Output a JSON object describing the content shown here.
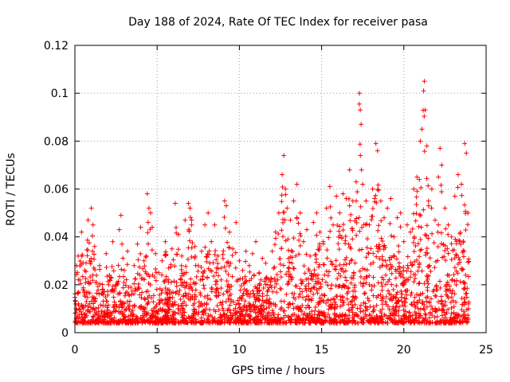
{
  "chart_data": {
    "type": "scatter",
    "title": "Day 188 of 2024, Rate Of TEC Index for receiver pasa",
    "xlabel": "GPS time / hours",
    "ylabel": "ROTI / TECUs",
    "xlim": [
      0,
      25
    ],
    "ylim": [
      0,
      0.12
    ],
    "xticks": [
      0,
      5,
      10,
      15,
      20,
      25
    ],
    "yticks": [
      0,
      0.02,
      0.04,
      0.06,
      0.08,
      0.1,
      0.12
    ],
    "xtick_labels": [
      "0",
      "5",
      "10",
      "15",
      "20",
      "25"
    ],
    "ytick_labels": [
      "0",
      "0.02",
      "0.04",
      "0.06",
      "0.08",
      "0.1",
      "0.12"
    ],
    "grid": true,
    "marker": "+",
    "color": "#ff0000",
    "series": [
      {
        "name": "ROTI",
        "points": [
          [
            0.05,
            0.012
          ],
          [
            0.1,
            0.028
          ],
          [
            0.2,
            0.032
          ],
          [
            0.3,
            0.022
          ],
          [
            0.4,
            0.042
          ],
          [
            0.5,
            0.018
          ],
          [
            0.6,
            0.026
          ],
          [
            0.7,
            0.013
          ],
          [
            0.8,
            0.047
          ],
          [
            0.9,
            0.03
          ],
          [
            1.0,
            0.052
          ],
          [
            1.1,
            0.045
          ],
          [
            1.2,
            0.036
          ],
          [
            1.3,
            0.021
          ],
          [
            1.5,
            0.028
          ],
          [
            1.7,
            0.017
          ],
          [
            1.9,
            0.033
          ],
          [
            2.1,
            0.024
          ],
          [
            2.3,
            0.038
          ],
          [
            2.5,
            0.02
          ],
          [
            2.7,
            0.043
          ],
          [
            2.8,
            0.049
          ],
          [
            3.0,
            0.026
          ],
          [
            3.2,
            0.034
          ],
          [
            3.4,
            0.019
          ],
          [
            3.6,
            0.028
          ],
          [
            3.8,
            0.037
          ],
          [
            4.0,
            0.044
          ],
          [
            4.2,
            0.03
          ],
          [
            4.4,
            0.058
          ],
          [
            4.5,
            0.052
          ],
          [
            4.6,
            0.05
          ],
          [
            4.7,
            0.044
          ],
          [
            4.9,
            0.033
          ],
          [
            5.1,
            0.025
          ],
          [
            5.3,
            0.03
          ],
          [
            5.5,
            0.038
          ],
          [
            5.7,
            0.027
          ],
          [
            5.9,
            0.035
          ],
          [
            6.1,
            0.054
          ],
          [
            6.3,
            0.041
          ],
          [
            6.5,
            0.032
          ],
          [
            6.7,
            0.047
          ],
          [
            6.9,
            0.054
          ],
          [
            7.0,
            0.052
          ],
          [
            7.1,
            0.047
          ],
          [
            7.3,
            0.036
          ],
          [
            7.5,
            0.028
          ],
          [
            7.7,
            0.034
          ],
          [
            7.9,
            0.045
          ],
          [
            8.1,
            0.05
          ],
          [
            8.3,
            0.038
          ],
          [
            8.5,
            0.045
          ],
          [
            8.7,
            0.032
          ],
          [
            8.9,
            0.027
          ],
          [
            9.1,
            0.055
          ],
          [
            9.2,
            0.053
          ],
          [
            9.4,
            0.042
          ],
          [
            9.6,
            0.035
          ],
          [
            9.8,
            0.046
          ],
          [
            10.0,
            0.03
          ],
          [
            10.2,
            0.026
          ],
          [
            10.4,
            0.034
          ],
          [
            10.6,
            0.028
          ],
          [
            10.8,
            0.033
          ],
          [
            11.0,
            0.038
          ],
          [
            11.2,
            0.025
          ],
          [
            11.4,
            0.031
          ],
          [
            11.6,
            0.029
          ],
          [
            11.8,
            0.022
          ],
          [
            12.0,
            0.034
          ],
          [
            12.2,
            0.042
          ],
          [
            12.4,
            0.05
          ],
          [
            12.6,
            0.066
          ],
          [
            12.7,
            0.074
          ],
          [
            12.8,
            0.06
          ],
          [
            12.9,
            0.052
          ],
          [
            13.1,
            0.047
          ],
          [
            13.3,
            0.055
          ],
          [
            13.5,
            0.062
          ],
          [
            13.7,
            0.05
          ],
          [
            13.9,
            0.038
          ],
          [
            14.1,
            0.043
          ],
          [
            14.3,
            0.032
          ],
          [
            14.5,
            0.046
          ],
          [
            14.7,
            0.05
          ],
          [
            14.9,
            0.042
          ],
          [
            15.1,
            0.038
          ],
          [
            15.3,
            0.052
          ],
          [
            15.5,
            0.061
          ],
          [
            15.7,
            0.045
          ],
          [
            15.9,
            0.057
          ],
          [
            16.1,
            0.05
          ],
          [
            16.3,
            0.058
          ],
          [
            16.5,
            0.056
          ],
          [
            16.7,
            0.068
          ],
          [
            16.9,
            0.055
          ],
          [
            17.1,
            0.063
          ],
          [
            17.3,
            0.1
          ],
          [
            17.35,
            0.093
          ],
          [
            17.4,
            0.087
          ],
          [
            17.5,
            0.062
          ],
          [
            17.7,
            0.055
          ],
          [
            17.9,
            0.045
          ],
          [
            18.1,
            0.06
          ],
          [
            18.3,
            0.079
          ],
          [
            18.4,
            0.076
          ],
          [
            18.6,
            0.055
          ],
          [
            18.8,
            0.048
          ],
          [
            19.0,
            0.052
          ],
          [
            19.2,
            0.056
          ],
          [
            19.4,
            0.04
          ],
          [
            19.6,
            0.048
          ],
          [
            19.8,
            0.05
          ],
          [
            20.0,
            0.038
          ],
          [
            20.2,
            0.045
          ],
          [
            20.4,
            0.042
          ],
          [
            20.6,
            0.06
          ],
          [
            20.8,
            0.065
          ],
          [
            21.0,
            0.08
          ],
          [
            21.1,
            0.085
          ],
          [
            21.2,
            0.101
          ],
          [
            21.25,
            0.105
          ],
          [
            21.3,
            0.093
          ],
          [
            21.4,
            0.078
          ],
          [
            21.5,
            0.055
          ],
          [
            21.7,
            0.06
          ],
          [
            21.9,
            0.047
          ],
          [
            22.1,
            0.065
          ],
          [
            22.2,
            0.077
          ],
          [
            22.3,
            0.07
          ],
          [
            22.5,
            0.052
          ],
          [
            22.7,
            0.045
          ],
          [
            22.9,
            0.04
          ],
          [
            23.1,
            0.057
          ],
          [
            23.3,
            0.066
          ],
          [
            23.5,
            0.062
          ],
          [
            23.7,
            0.079
          ],
          [
            23.8,
            0.075
          ],
          [
            23.9,
            0.05
          ]
        ]
      }
    ]
  }
}
